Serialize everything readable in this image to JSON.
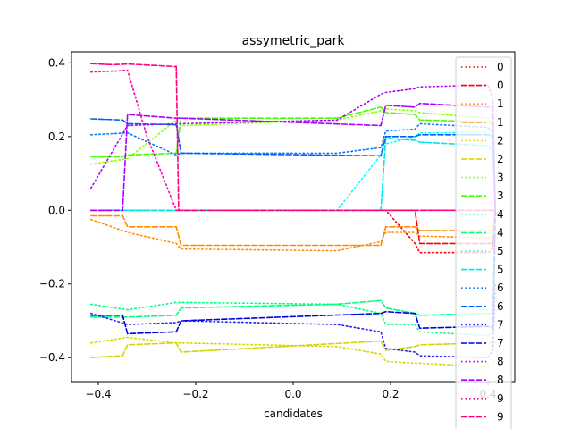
{
  "chart_data": {
    "type": "line",
    "title": "assymetric_park",
    "xlabel": "candidates",
    "ylabel": "",
    "xlim": [
      -0.455,
      0.455
    ],
    "ylim": [
      -0.465,
      0.43
    ],
    "xticks": [
      -0.4,
      -0.2,
      0.0,
      0.2,
      0.4
    ],
    "xtick_labels": [
      "−0.4",
      "−0.2",
      "0.0",
      "0.2",
      "0.4"
    ],
    "yticks": [
      -0.4,
      -0.2,
      0.0,
      0.2,
      0.4
    ],
    "ytick_labels": [
      "−0.4",
      "−0.2",
      "0.0",
      "0.2",
      "0.4"
    ],
    "grid": false,
    "legend_position": "right",
    "series": [
      {
        "name": "0",
        "color": "#ff0000",
        "dash": "dotted",
        "x": [
          -0.415,
          -0.34,
          -0.24,
          -0.23,
          0.18,
          0.19,
          0.25,
          0.26,
          0.4,
          0.41,
          0.415
        ],
        "y": [
          0.0,
          0.0,
          0.0,
          0.0,
          0.0,
          0.0,
          -0.09,
          -0.115,
          -0.115,
          -0.105,
          0.0
        ]
      },
      {
        "name": "0",
        "color": "#ff0000",
        "dash": "dashed",
        "x": [
          -0.415,
          -0.34,
          -0.24,
          -0.23,
          0.18,
          0.19,
          0.25,
          0.26,
          0.4,
          0.41,
          0.415
        ],
        "y": [
          0.0,
          0.0,
          0.0,
          0.0,
          0.0,
          0.0,
          0.0,
          -0.09,
          -0.09,
          -0.09,
          0.0
        ]
      },
      {
        "name": "1",
        "color": "#ff8c00",
        "dash": "dotted",
        "x": [
          -0.415,
          -0.34,
          -0.24,
          -0.23,
          0.09,
          0.18,
          0.19,
          0.25,
          0.26,
          0.4,
          0.41,
          0.415
        ],
        "y": [
          -0.025,
          -0.06,
          -0.09,
          -0.105,
          -0.11,
          -0.085,
          -0.06,
          -0.06,
          -0.07,
          -0.075,
          -0.07,
          0.0
        ]
      },
      {
        "name": "1",
        "color": "#ff8c00",
        "dash": "dashed",
        "x": [
          -0.415,
          -0.35,
          -0.34,
          -0.24,
          -0.23,
          0.18,
          0.19,
          0.25,
          0.26,
          0.4,
          0.41,
          0.415
        ],
        "y": [
          -0.015,
          -0.015,
          -0.045,
          -0.045,
          -0.095,
          -0.095,
          -0.045,
          -0.045,
          -0.055,
          -0.055,
          -0.055,
          0.0
        ]
      },
      {
        "name": "2",
        "color": "#d4d400",
        "dash": "dotted",
        "x": [
          -0.415,
          -0.34,
          -0.24,
          -0.23,
          0.09,
          0.18,
          0.19,
          0.25,
          0.26,
          0.4,
          0.41,
          0.415
        ],
        "y": [
          -0.36,
          -0.345,
          -0.36,
          -0.36,
          -0.37,
          -0.39,
          -0.41,
          -0.415,
          -0.415,
          -0.425,
          -0.42,
          -0.405
        ]
      },
      {
        "name": "2",
        "color": "#d4d400",
        "dash": "dashed",
        "x": [
          -0.415,
          -0.35,
          -0.34,
          -0.24,
          -0.23,
          0.18,
          0.19,
          0.25,
          0.26,
          0.4,
          0.41,
          0.415
        ],
        "y": [
          -0.4,
          -0.395,
          -0.365,
          -0.36,
          -0.385,
          -0.355,
          -0.38,
          -0.37,
          -0.365,
          -0.36,
          -0.36,
          -0.36
        ]
      },
      {
        "name": "3",
        "color": "#88ff00",
        "dash": "dotted",
        "x": [
          -0.415,
          -0.34,
          -0.24,
          -0.23,
          0.09,
          0.18,
          0.19,
          0.25,
          0.26,
          0.4,
          0.41,
          0.415
        ],
        "y": [
          0.125,
          0.14,
          0.245,
          0.23,
          0.245,
          0.27,
          0.275,
          0.27,
          0.265,
          0.25,
          0.22,
          0.0
        ]
      },
      {
        "name": "3",
        "color": "#44ff00",
        "dash": "dashed",
        "x": [
          -0.415,
          -0.35,
          -0.34,
          -0.24,
          -0.23,
          0.09,
          0.18,
          0.19,
          0.25,
          0.26,
          0.4,
          0.41,
          0.415
        ],
        "y": [
          0.145,
          0.145,
          0.15,
          0.155,
          0.25,
          0.25,
          0.28,
          0.265,
          0.26,
          0.245,
          0.24,
          0.235,
          0.0
        ]
      },
      {
        "name": "4",
        "color": "#00ff7f",
        "dash": "dotted",
        "x": [
          -0.415,
          -0.34,
          -0.24,
          -0.23,
          0.09,
          0.18,
          0.19,
          0.25,
          0.26,
          0.4,
          0.41,
          0.415
        ],
        "y": [
          -0.255,
          -0.27,
          -0.25,
          -0.25,
          -0.255,
          -0.28,
          -0.31,
          -0.31,
          -0.33,
          -0.34,
          -0.33,
          -0.1
        ]
      },
      {
        "name": "4",
        "color": "#00ff7f",
        "dash": "dashed",
        "x": [
          -0.415,
          -0.35,
          -0.34,
          -0.24,
          -0.23,
          0.09,
          0.18,
          0.19,
          0.25,
          0.26,
          0.4,
          0.41,
          0.415
        ],
        "y": [
          -0.29,
          -0.29,
          -0.29,
          -0.285,
          -0.265,
          -0.255,
          -0.245,
          -0.265,
          -0.28,
          -0.285,
          -0.28,
          -0.28,
          0.0
        ]
      },
      {
        "name": "5",
        "color": "#00ffff",
        "dash": "dotted",
        "x": [
          -0.415,
          -0.34,
          -0.24,
          -0.23,
          0.09,
          0.18,
          0.19,
          0.25,
          0.26,
          0.4,
          0.41,
          0.415
        ],
        "y": [
          0.0,
          0.0,
          0.0,
          0.0,
          0.0,
          0.15,
          0.18,
          0.2,
          0.21,
          0.21,
          0.2,
          0.0
        ]
      },
      {
        "name": "5",
        "color": "#00e5e5",
        "dash": "dashed",
        "x": [
          -0.415,
          -0.34,
          -0.24,
          -0.23,
          0.18,
          0.19,
          0.25,
          0.26,
          0.4,
          0.41,
          0.415
        ],
        "y": [
          0.0,
          0.0,
          0.0,
          0.0,
          0.0,
          0.195,
          0.19,
          0.185,
          0.175,
          0.16,
          0.0
        ]
      },
      {
        "name": "6",
        "color": "#0077ff",
        "dash": "dotted",
        "x": [
          -0.415,
          -0.34,
          -0.24,
          -0.23,
          0.09,
          0.18,
          0.19,
          0.25,
          0.26,
          0.4,
          0.41,
          0.415
        ],
        "y": [
          0.205,
          0.21,
          0.15,
          0.155,
          0.155,
          0.17,
          0.215,
          0.22,
          0.235,
          0.225,
          0.21,
          0.0
        ]
      },
      {
        "name": "6",
        "color": "#0060ff",
        "dash": "dashed",
        "x": [
          -0.415,
          -0.35,
          -0.34,
          -0.24,
          -0.23,
          0.18,
          0.19,
          0.25,
          0.26,
          0.4,
          0.41,
          0.415
        ],
        "y": [
          0.248,
          0.245,
          0.235,
          0.232,
          0.155,
          0.148,
          0.2,
          0.2,
          0.205,
          0.205,
          0.2,
          0.0
        ]
      },
      {
        "name": "7",
        "color": "#2222ff",
        "dash": "dotted",
        "x": [
          -0.415,
          -0.34,
          -0.24,
          -0.23,
          0.09,
          0.18,
          0.19,
          0.25,
          0.26,
          0.4,
          0.41,
          0.415
        ],
        "y": [
          -0.28,
          -0.31,
          -0.305,
          -0.3,
          -0.31,
          -0.33,
          -0.375,
          -0.385,
          -0.395,
          -0.4,
          -0.38,
          -0.2
        ]
      },
      {
        "name": "7",
        "color": "#0000e0",
        "dash": "dashed",
        "x": [
          -0.415,
          -0.35,
          -0.34,
          -0.24,
          -0.23,
          0.18,
          0.19,
          0.25,
          0.26,
          0.4,
          0.41,
          0.415
        ],
        "y": [
          -0.285,
          -0.285,
          -0.335,
          -0.33,
          -0.3,
          -0.28,
          -0.275,
          -0.28,
          -0.32,
          -0.315,
          -0.32,
          0.0
        ]
      },
      {
        "name": "8",
        "color": "#aa00ff",
        "dash": "dotted",
        "x": [
          -0.415,
          -0.34,
          -0.24,
          -0.23,
          0.09,
          0.18,
          0.19,
          0.25,
          0.26,
          0.4,
          0.41,
          0.415
        ],
        "y": [
          0.06,
          0.23,
          0.235,
          0.235,
          0.245,
          0.315,
          0.32,
          0.33,
          0.335,
          0.34,
          0.3,
          0.0
        ]
      },
      {
        "name": "8",
        "color": "#aa00ff",
        "dash": "dashed",
        "x": [
          -0.415,
          -0.35,
          -0.34,
          -0.24,
          -0.23,
          0.18,
          0.19,
          0.25,
          0.26,
          0.4,
          0.41,
          0.415
        ],
        "y": [
          0.0,
          0.0,
          0.26,
          0.25,
          0.25,
          0.23,
          0.285,
          0.28,
          0.29,
          0.28,
          0.28,
          0.0
        ]
      },
      {
        "name": "9",
        "color": "#ff00aa",
        "dash": "dotted",
        "x": [
          -0.415,
          -0.36,
          -0.34,
          -0.3,
          -0.24,
          -0.23,
          0.18,
          0.25,
          0.4,
          0.41,
          0.415
        ],
        "y": [
          0.375,
          0.378,
          0.38,
          0.2,
          0.0,
          0.0,
          0.0,
          0.0,
          0.0,
          0.0,
          0.0
        ]
      },
      {
        "name": "9",
        "color": "#ff0080",
        "dash": "dashed",
        "x": [
          -0.415,
          -0.37,
          -0.34,
          -0.24,
          -0.235,
          0.18,
          0.25,
          0.4,
          0.41,
          0.415
        ],
        "y": [
          0.398,
          0.395,
          0.397,
          0.39,
          0.0,
          0.0,
          0.0,
          0.0,
          0.0,
          0.0
        ]
      }
    ]
  }
}
